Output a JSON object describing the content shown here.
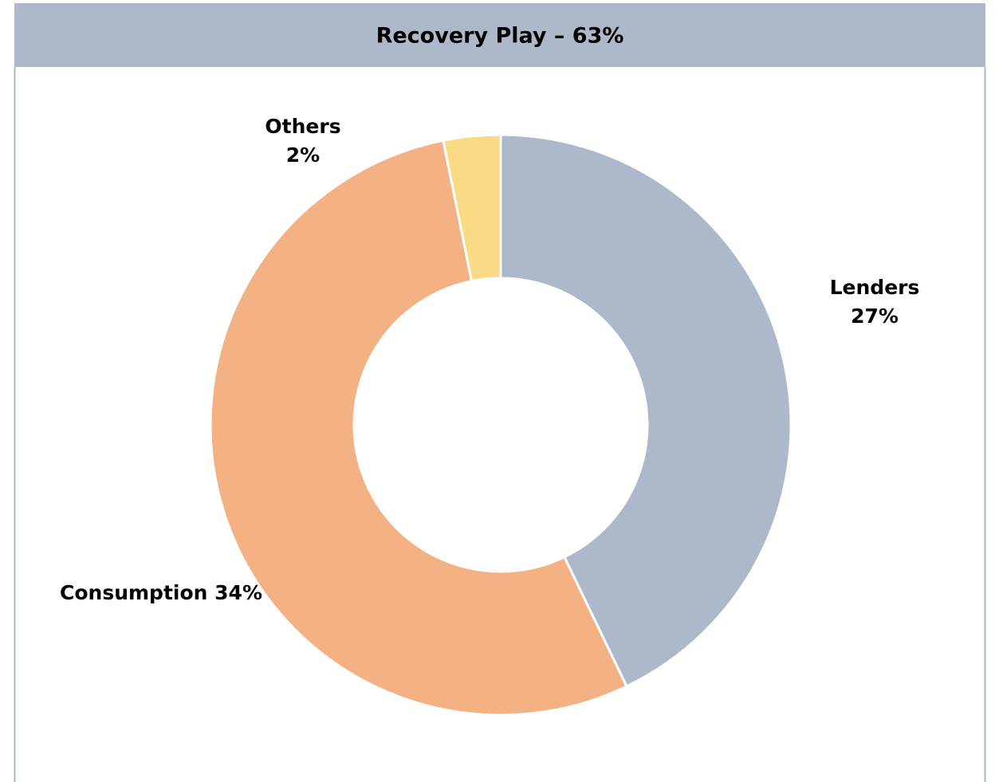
{
  "chart_data": {
    "type": "donut",
    "title": "Recovery Play – 63%",
    "categories": [
      "Lenders",
      "Consumption",
      "Others"
    ],
    "values": [
      27,
      34,
      2
    ],
    "value_labels": [
      "27%",
      "34%",
      "2%"
    ],
    "colors": [
      "#adb9ca",
      "#f4b183",
      "#fbda85"
    ]
  }
}
